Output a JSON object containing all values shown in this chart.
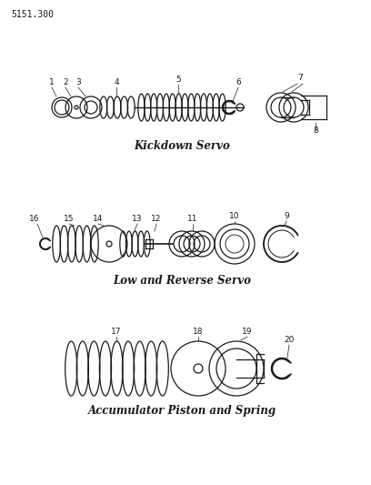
{
  "title": "5151.300",
  "background_color": "#ffffff",
  "line_color": "#1a1a1a",
  "section1_label": "Kickdown Servo",
  "section2_label": "Low and Reverse Servo",
  "section3_label": "Accumulator Piston and Spring",
  "fig_width": 4.08,
  "fig_height": 5.33,
  "dpi": 100
}
